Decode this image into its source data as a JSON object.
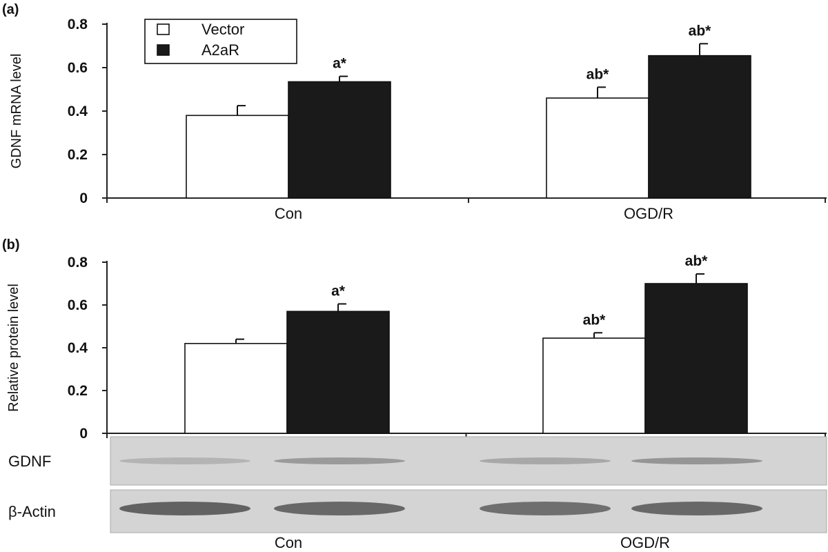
{
  "colors": {
    "vector": "#ffffff",
    "a2ar": "#1a1a1a",
    "axis": "#222222",
    "blot_bg": "#d4d4d4",
    "band": "#555555"
  },
  "legend": {
    "items": [
      {
        "label": "Vector"
      },
      {
        "label": "A2aR"
      }
    ]
  },
  "chart_data": [
    {
      "type": "bar",
      "panel_label": "(a)",
      "ylabel": "GDNF mRNA level",
      "categories": [
        "Con",
        "OGD/R"
      ],
      "yticks": [
        "0",
        "0.2",
        "0.4",
        "0.6",
        "0.8"
      ],
      "ylim": [
        0,
        0.8
      ],
      "series": [
        {
          "name": "Vector",
          "values": [
            0.38,
            0.46
          ],
          "errors": [
            0.045,
            0.05
          ],
          "sig": [
            "",
            "ab*"
          ]
        },
        {
          "name": "A2aR",
          "values": [
            0.535,
            0.655
          ],
          "errors": [
            0.025,
            0.055
          ],
          "sig": [
            "a*",
            "ab*"
          ]
        }
      ],
      "legend_position": "top-left"
    },
    {
      "type": "bar",
      "panel_label": "(b)",
      "ylabel": "Relative protein level",
      "categories": [
        "Con",
        "OGD/R"
      ],
      "yticks": [
        "0",
        "0.2",
        "0.4",
        "0.6",
        "0.8"
      ],
      "ylim": [
        0,
        0.8
      ],
      "series": [
        {
          "name": "Vector",
          "values": [
            0.42,
            0.445
          ],
          "errors": [
            0.02,
            0.025
          ],
          "sig": [
            "",
            "ab*"
          ]
        },
        {
          "name": "A2aR",
          "values": [
            0.57,
            0.7
          ],
          "errors": [
            0.035,
            0.045
          ],
          "sig": [
            "a*",
            "ab*"
          ]
        }
      ]
    }
  ],
  "blot": {
    "rows": [
      {
        "label": "GDNF",
        "intensity": [
          0.25,
          0.45,
          0.35,
          0.5
        ]
      },
      {
        "label": "β-Actin",
        "intensity": [
          0.9,
          0.85,
          0.8,
          0.85
        ]
      }
    ],
    "categories": [
      "Con",
      "OGD/R"
    ]
  }
}
